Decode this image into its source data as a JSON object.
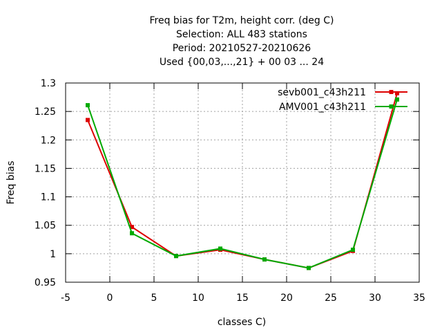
{
  "chart_data": {
    "type": "line",
    "title_lines": [
      "Freq bias  for T2m, height corr. (deg C)",
      "Selection: ALL    483 stations",
      "Period: 20210527-20210626",
      "Used {00,03,...,21} + 00 03 ... 24"
    ],
    "xlabel": "classes C)",
    "ylabel": "Freq bias",
    "xlim": [
      -5,
      35
    ],
    "ylim": [
      0.95,
      1.3
    ],
    "xticks": [
      -5,
      0,
      5,
      10,
      15,
      20,
      25,
      30,
      35
    ],
    "yticks": [
      0.95,
      1,
      1.05,
      1.1,
      1.15,
      1.2,
      1.25,
      1.3
    ],
    "ytick_labels": [
      "0.95",
      "1",
      "1.05",
      "1.1",
      "1.15",
      "1.2",
      "1.25",
      "1.3"
    ],
    "grid": true,
    "legend_position": "top-right",
    "series": [
      {
        "name": "sevb001_c43h211",
        "color": "#dd0000",
        "x": [
          -2.5,
          2.5,
          7.5,
          12.5,
          17.5,
          22.5,
          27.5,
          32.5
        ],
        "values": [
          1.235,
          1.047,
          0.996,
          1.007,
          0.99,
          0.975,
          1.005,
          1.282
        ]
      },
      {
        "name": "AMV001_c43h211",
        "color": "#00aa00",
        "x": [
          -2.5,
          2.5,
          7.5,
          12.5,
          17.5,
          22.5,
          27.5,
          32.5
        ],
        "values": [
          1.261,
          1.036,
          0.996,
          1.009,
          0.99,
          0.975,
          1.007,
          1.271
        ]
      }
    ]
  }
}
